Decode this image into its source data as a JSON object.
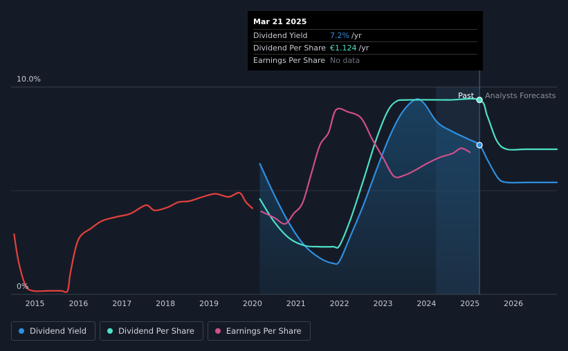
{
  "chart_data": {
    "type": "line",
    "y_axis_labels": [
      "10.0%",
      "0%"
    ],
    "ylim": [
      0,
      10
    ],
    "x_ticks": [
      "2015",
      "2016",
      "2017",
      "2018",
      "2019",
      "2020",
      "2021",
      "2022",
      "2023",
      "2024",
      "2025",
      "2026"
    ],
    "xlim": [
      2014.45,
      2027.0
    ],
    "past_label": "Past",
    "forecast_label": "Analysts Forecasts",
    "forecast_start": 2024.22,
    "current_date": 2025.22,
    "series": [
      {
        "name": "Dividend Yield",
        "color": "#2e8fe0",
        "axis": "percent",
        "points": [
          [
            2020.17,
            6.3
          ],
          [
            2020.5,
            4.8
          ],
          [
            2020.85,
            3.4
          ],
          [
            2021.2,
            2.35
          ],
          [
            2021.55,
            1.75
          ],
          [
            2021.85,
            1.5
          ],
          [
            2022.0,
            1.6
          ],
          [
            2022.25,
            2.8
          ],
          [
            2022.55,
            4.3
          ],
          [
            2022.85,
            6.0
          ],
          [
            2023.15,
            7.6
          ],
          [
            2023.45,
            8.8
          ],
          [
            2023.75,
            9.4
          ],
          [
            2023.95,
            9.2
          ],
          [
            2024.25,
            8.3
          ],
          [
            2024.6,
            7.85
          ],
          [
            2024.95,
            7.5
          ],
          [
            2025.22,
            7.2
          ],
          [
            2025.4,
            6.5
          ],
          [
            2025.65,
            5.6
          ],
          [
            2025.85,
            5.4
          ],
          [
            2026.3,
            5.4
          ],
          [
            2027.0,
            5.4
          ]
        ]
      },
      {
        "name": "Dividend Per Share",
        "color": "#4ee1c8",
        "axis": "dps",
        "points": [
          [
            2020.17,
            4.6
          ],
          [
            2020.5,
            3.5
          ],
          [
            2020.85,
            2.7
          ],
          [
            2021.2,
            2.35
          ],
          [
            2021.5,
            2.3
          ],
          [
            2021.85,
            2.3
          ],
          [
            2022.0,
            2.35
          ],
          [
            2022.25,
            3.6
          ],
          [
            2022.55,
            5.5
          ],
          [
            2022.85,
            7.5
          ],
          [
            2023.1,
            8.8
          ],
          [
            2023.3,
            9.3
          ],
          [
            2023.55,
            9.38
          ],
          [
            2024.5,
            9.38
          ],
          [
            2025.22,
            9.38
          ],
          [
            2025.4,
            8.6
          ],
          [
            2025.62,
            7.4
          ],
          [
            2025.85,
            7.0
          ],
          [
            2026.3,
            7.0
          ],
          [
            2027.0,
            7.0
          ]
        ]
      },
      {
        "name": "Earnings Per Share",
        "color": "#d04f8c",
        "axis": "eps",
        "points": [
          [
            2020.2,
            4.0
          ],
          [
            2020.5,
            3.7
          ],
          [
            2020.75,
            3.4
          ],
          [
            2020.95,
            3.9
          ],
          [
            2021.15,
            4.4
          ],
          [
            2021.35,
            5.8
          ],
          [
            2021.55,
            7.2
          ],
          [
            2021.75,
            7.8
          ],
          [
            2021.92,
            8.9
          ],
          [
            2022.2,
            8.8
          ],
          [
            2022.5,
            8.5
          ],
          [
            2022.75,
            7.5
          ],
          [
            2023.0,
            6.6
          ],
          [
            2023.25,
            5.7
          ],
          [
            2023.5,
            5.75
          ],
          [
            2023.75,
            6.0
          ],
          [
            2024.0,
            6.3
          ],
          [
            2024.3,
            6.6
          ],
          [
            2024.6,
            6.8
          ],
          [
            2024.8,
            7.05
          ],
          [
            2025.0,
            6.85
          ]
        ]
      },
      {
        "name": "Earnings Per Share (history)",
        "color": "#e5413f",
        "axis": "eps",
        "points": [
          [
            2014.52,
            2.9
          ],
          [
            2014.62,
            1.6
          ],
          [
            2014.78,
            0.45
          ],
          [
            2014.95,
            0.17
          ],
          [
            2015.3,
            0.17
          ],
          [
            2015.6,
            0.17
          ],
          [
            2015.75,
            0.17
          ],
          [
            2015.82,
            1.1
          ],
          [
            2016.0,
            2.65
          ],
          [
            2016.3,
            3.2
          ],
          [
            2016.55,
            3.55
          ],
          [
            2016.9,
            3.75
          ],
          [
            2017.2,
            3.9
          ],
          [
            2017.55,
            4.3
          ],
          [
            2017.75,
            4.05
          ],
          [
            2018.05,
            4.2
          ],
          [
            2018.3,
            4.45
          ],
          [
            2018.55,
            4.5
          ],
          [
            2018.85,
            4.7
          ],
          [
            2019.15,
            4.85
          ],
          [
            2019.45,
            4.7
          ],
          [
            2019.7,
            4.9
          ],
          [
            2019.85,
            4.45
          ],
          [
            2020.0,
            4.15
          ]
        ]
      }
    ],
    "highlight_points": [
      {
        "series": "Dividend Yield",
        "x": 2025.22,
        "y": 7.2
      },
      {
        "series": "Dividend Per Share",
        "x": 2025.22,
        "y": 9.38
      }
    ]
  },
  "tooltip": {
    "date": "Mar 21 2025",
    "rows": [
      {
        "label": "Dividend Yield",
        "value": "7.2%",
        "unit": "/yr",
        "color": "#2e8fe0"
      },
      {
        "label": "Dividend Per Share",
        "value": "€1.124",
        "unit": "/yr",
        "color": "#4ee1c8"
      },
      {
        "label": "Earnings Per Share",
        "value": "No data",
        "unit": "",
        "color": "#6b7280"
      }
    ]
  },
  "legend": [
    {
      "label": "Dividend Yield",
      "color": "#2e8fe0"
    },
    {
      "label": "Dividend Per Share",
      "color": "#4ee1c8"
    },
    {
      "label": "Earnings Per Share",
      "color": "#d04f8c"
    }
  ]
}
